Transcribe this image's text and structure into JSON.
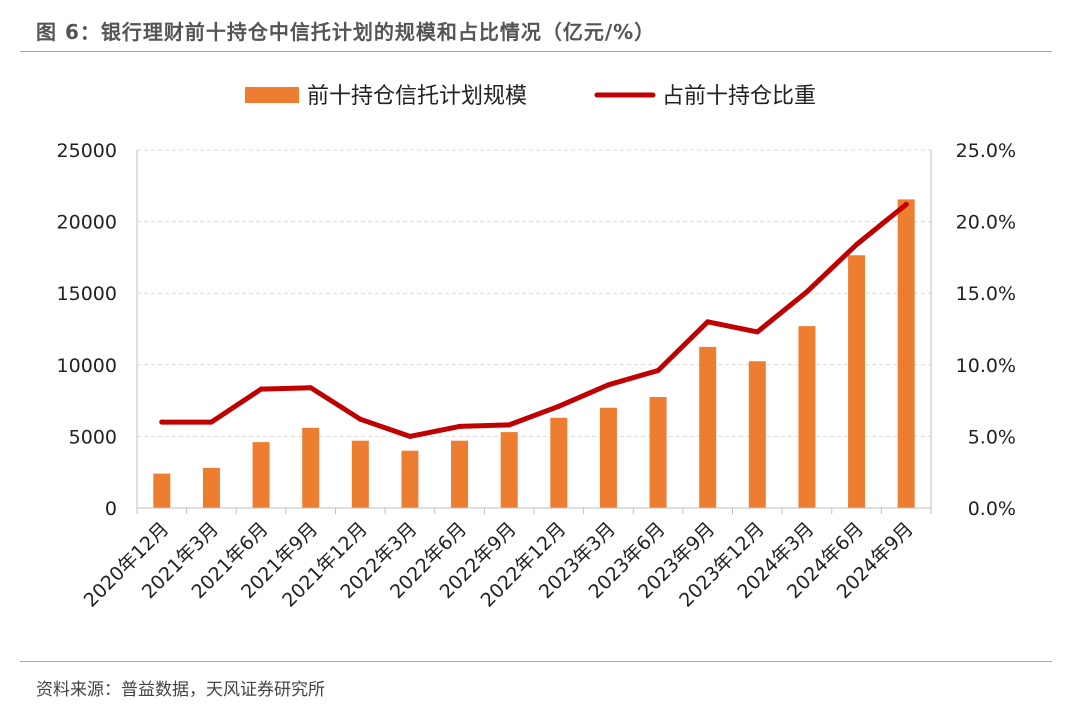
{
  "header": {
    "title": "图 6：银行理财前十持仓中信托计划的规模和占比情况（亿元/%）"
  },
  "footer": {
    "source": "资料来源：普益数据，天风证券研究所"
  },
  "colors": {
    "bar": "#ed7d31",
    "line": "#c00000",
    "grid": "#d9d9d9",
    "rule": "#c9a46a"
  },
  "chart_data": {
    "type": "bar+line",
    "categories": [
      "2020年12月",
      "2021年3月",
      "2021年6月",
      "2021年9月",
      "2021年12月",
      "2022年3月",
      "2022年6月",
      "2022年9月",
      "2022年12月",
      "2023年3月",
      "2023年6月",
      "2023年9月",
      "2023年12月",
      "2024年3月",
      "2024年6月",
      "2024年9月"
    ],
    "series": [
      {
        "name": "前十持仓信托计划规模",
        "type": "bar",
        "axis": "left",
        "values": [
          2400,
          2800,
          4600,
          5600,
          4700,
          4000,
          4700,
          5300,
          6300,
          7000,
          7750,
          11250,
          10250,
          12700,
          17650,
          21550
        ]
      },
      {
        "name": "占前十持仓比重",
        "type": "line",
        "axis": "right",
        "values": [
          6.0,
          6.0,
          8.3,
          8.4,
          6.2,
          5.0,
          5.7,
          5.8,
          7.1,
          8.6,
          9.6,
          13.0,
          12.3,
          15.1,
          18.4,
          21.2
        ]
      }
    ],
    "y_left": {
      "min": 0,
      "max": 25000,
      "ticks": [
        "0",
        "5000",
        "10000",
        "15000",
        "20000",
        "25000"
      ]
    },
    "y_right": {
      "min": 0,
      "max": 25,
      "ticks": [
        "0.0%",
        "5.0%",
        "10.0%",
        "15.0%",
        "20.0%",
        "25.0%"
      ]
    },
    "legend_position": "top-center",
    "grid": true
  }
}
